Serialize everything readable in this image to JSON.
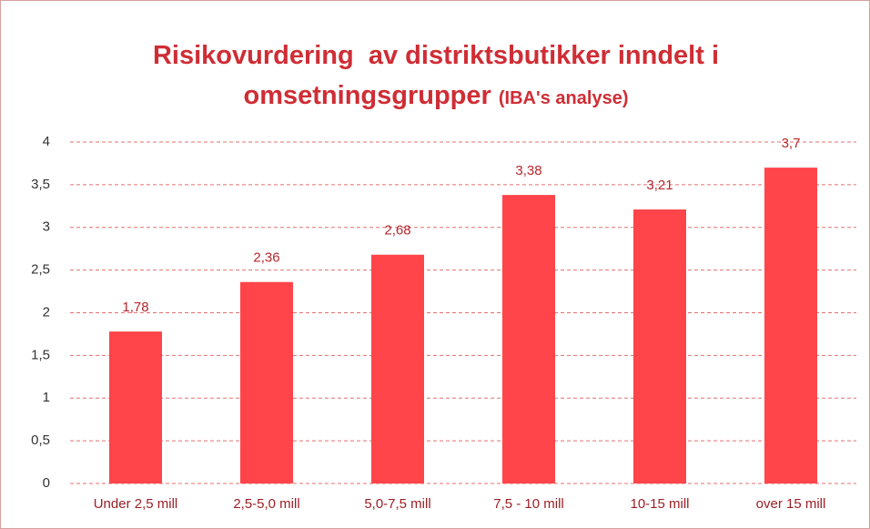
{
  "chart_data": {
    "type": "bar",
    "title": "Risikovurdering  av distriktsbutikker inndelt i omsetningsgrupper",
    "title_note": "(IBA's analyse)",
    "categories": [
      "Under 2,5 mill",
      "2,5-5,0 mill",
      "5,0-7,5 mill",
      "7,5 - 10 mill",
      "10-15 mill",
      "over 15 mill"
    ],
    "values": [
      1.78,
      2.36,
      2.68,
      3.38,
      3.21,
      3.7
    ],
    "value_labels": [
      "1,78",
      "2,36",
      "2,68",
      "3,38",
      "3,21",
      "3,7"
    ],
    "color": "#ff444a",
    "ylim": [
      0,
      4
    ],
    "yticks": [
      0,
      {
        "value": 0.5,
        "label": "0,5"
      },
      1,
      {
        "value": 1.5,
        "label": "1,5"
      },
      2,
      {
        "value": 2.5,
        "label": "2,5"
      },
      3,
      {
        "value": 3.5,
        "label": "3,5"
      },
      4
    ],
    "grid": true
  }
}
